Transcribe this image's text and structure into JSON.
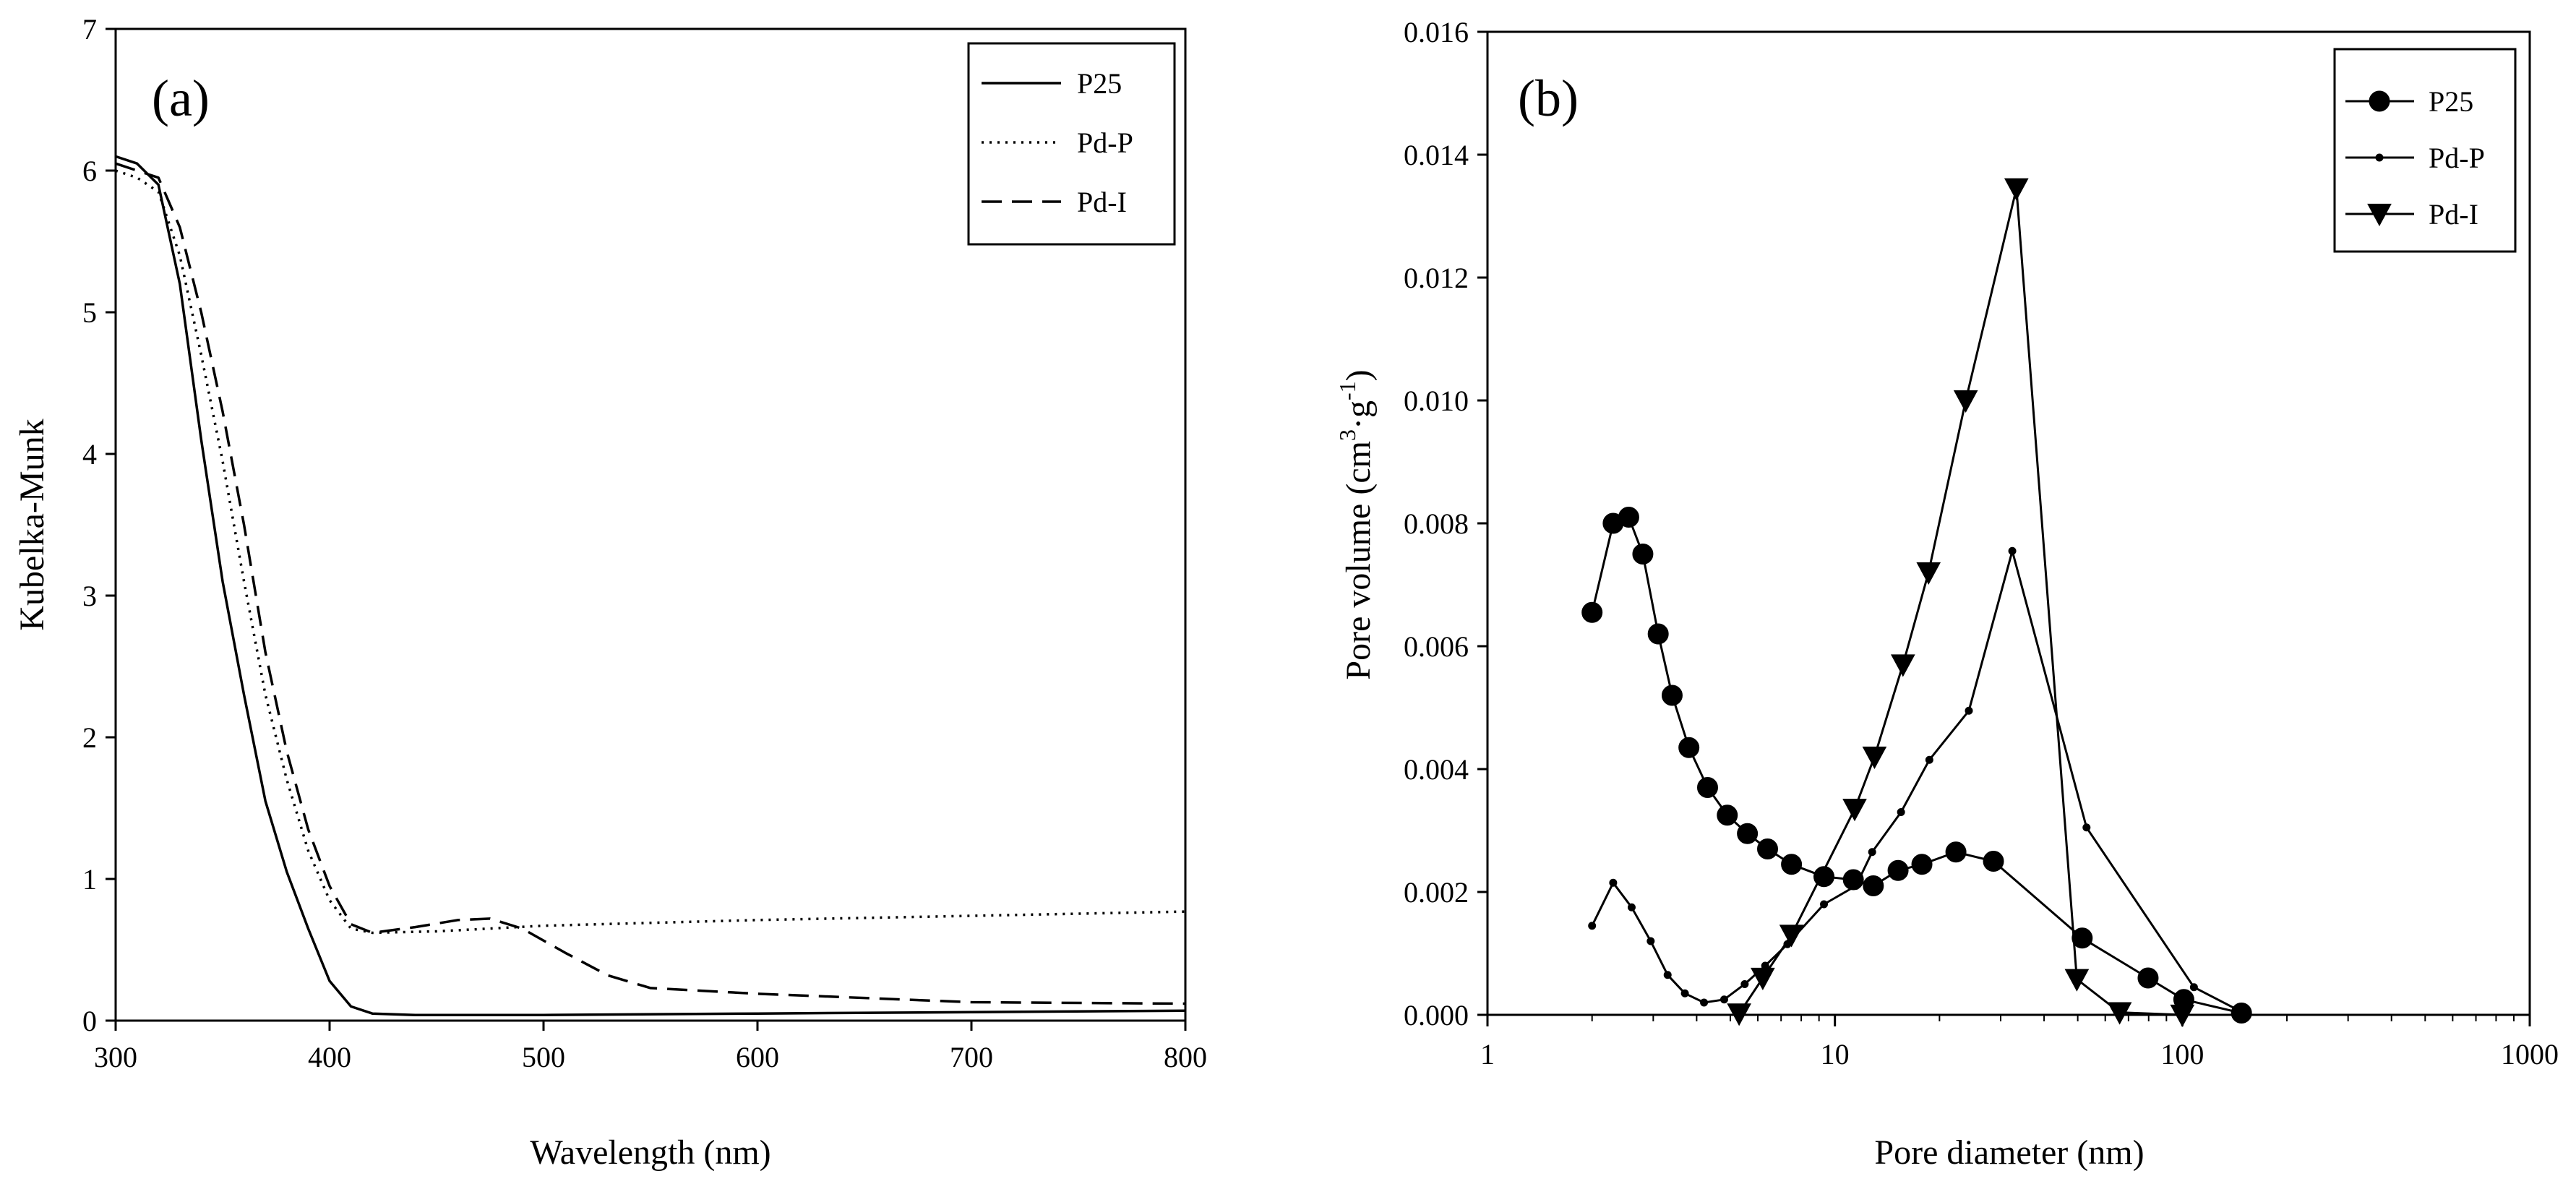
{
  "chart_data": [
    {
      "panel_label": "(a)",
      "type": "line",
      "xlabel": "Wavelength (nm)",
      "ylabel": "Kubelka-Munk",
      "xlim": [
        300,
        800
      ],
      "ylim": [
        0,
        7
      ],
      "xticks": [
        300,
        400,
        500,
        600,
        700,
        800
      ],
      "xtick_labels": [
        "300",
        "400",
        "500",
        "600",
        "700",
        "800"
      ],
      "yticks": [
        0,
        1,
        2,
        3,
        4,
        5,
        6,
        7
      ],
      "ytick_labels": [
        "0",
        "1",
        "2",
        "3",
        "4",
        "5",
        "6",
        "7"
      ],
      "grid": false,
      "legend_position": "top-right",
      "series": [
        {
          "name": "P25",
          "style": "solid",
          "x": [
            300,
            310,
            320,
            330,
            340,
            350,
            360,
            370,
            380,
            390,
            400,
            410,
            420,
            440,
            500,
            600,
            700,
            800
          ],
          "y": [
            6.1,
            6.05,
            5.9,
            5.2,
            4.1,
            3.1,
            2.3,
            1.55,
            1.05,
            0.65,
            0.28,
            0.1,
            0.05,
            0.04,
            0.04,
            0.05,
            0.06,
            0.07
          ]
        },
        {
          "name": "Pd-P",
          "style": "dotted",
          "x": [
            300,
            310,
            320,
            330,
            340,
            350,
            360,
            370,
            380,
            390,
            400,
            410,
            420,
            450,
            500,
            600,
            700,
            800
          ],
          "y": [
            6.0,
            5.95,
            5.85,
            5.4,
            4.7,
            3.95,
            3.1,
            2.3,
            1.7,
            1.2,
            0.85,
            0.65,
            0.62,
            0.63,
            0.67,
            0.71,
            0.74,
            0.77
          ]
        },
        {
          "name": "Pd-I",
          "style": "dashed",
          "x": [
            300,
            310,
            320,
            330,
            340,
            350,
            360,
            370,
            380,
            390,
            400,
            410,
            420,
            440,
            460,
            475,
            490,
            510,
            530,
            550,
            600,
            700,
            800
          ],
          "y": [
            6.05,
            6.0,
            5.95,
            5.6,
            5.0,
            4.3,
            3.5,
            2.6,
            1.9,
            1.35,
            0.95,
            0.68,
            0.62,
            0.66,
            0.71,
            0.72,
            0.65,
            0.48,
            0.32,
            0.23,
            0.19,
            0.13,
            0.12
          ]
        }
      ]
    },
    {
      "panel_label": "(b)",
      "type": "line",
      "xscale": "log",
      "xlabel": "Pore diameter (nm)",
      "ylabel": {
        "pre": "Pore volume (cm",
        "sup1": "3",
        "mid": "·g",
        "sup2": "-1",
        "post": ")"
      },
      "xlim": [
        1,
        1000
      ],
      "ylim": [
        0,
        0.016
      ],
      "xticks": [
        1,
        10,
        100,
        1000
      ],
      "xtick_labels": [
        "1",
        "10",
        "100",
        "1000"
      ],
      "yticks": [
        0,
        0.002,
        0.004,
        0.006,
        0.008,
        0.01,
        0.012,
        0.014,
        0.016
      ],
      "ytick_labels": [
        "0.000",
        "0.002",
        "0.004",
        "0.006",
        "0.008",
        "0.010",
        "0.012",
        "0.014",
        "0.016"
      ],
      "grid": false,
      "legend_position": "top-right",
      "series": [
        {
          "name": "P25",
          "marker": "circle",
          "x": [
            2.0,
            2.3,
            2.55,
            2.8,
            3.1,
            3.4,
            3.8,
            4.3,
            4.9,
            5.6,
            6.4,
            7.5,
            9.3,
            11.3,
            12.9,
            15.2,
            17.8,
            22.3,
            28.6,
            51.5,
            79.7,
            101,
            148
          ],
          "y": [
            0.00655,
            0.008,
            0.0081,
            0.0075,
            0.0062,
            0.0052,
            0.00435,
            0.0037,
            0.00325,
            0.00295,
            0.0027,
            0.00245,
            0.00225,
            0.0022,
            0.0021,
            0.00235,
            0.00245,
            0.00265,
            0.0025,
            0.00125,
            0.0006,
            0.00025,
            3e-05
          ]
        },
        {
          "name": "Pd-P",
          "marker": "small-diamond",
          "x": [
            2.0,
            2.3,
            2.6,
            2.95,
            3.3,
            3.7,
            4.2,
            4.8,
            5.5,
            6.3,
            7.3,
            9.3,
            11.5,
            12.8,
            15.5,
            18.7,
            24.3,
            32.4,
            53,
            108,
            148
          ],
          "y": [
            0.00145,
            0.00215,
            0.00175,
            0.0012,
            0.00065,
            0.00035,
            0.0002,
            0.00025,
            0.0005,
            0.0008,
            0.00115,
            0.0018,
            0.0021,
            0.00265,
            0.0033,
            0.00415,
            0.00495,
            0.00755,
            0.00305,
            0.00045,
            5e-05
          ]
        },
        {
          "name": "Pd-I",
          "marker": "triangle-down",
          "x": [
            5.3,
            6.2,
            7.5,
            11.4,
            13.0,
            15.7,
            18.6,
            23.8,
            33.3,
            49.7,
            66.0,
            100
          ],
          "y": [
            2e-05,
            0.0006,
            0.0013,
            0.00335,
            0.0042,
            0.0057,
            0.0072,
            0.01,
            0.01345,
            0.00058,
            4e-05,
            0.0
          ]
        }
      ]
    }
  ]
}
